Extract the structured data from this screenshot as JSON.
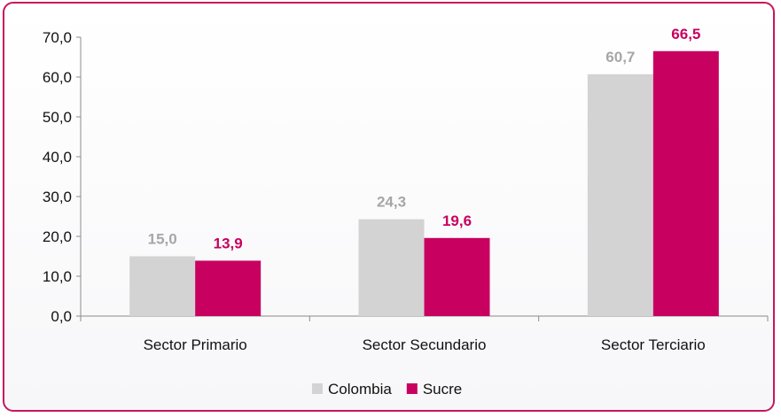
{
  "chart_data": {
    "type": "bar",
    "categories": [
      "Sector Primario",
      "Sector Secundario",
      "Sector Terciario"
    ],
    "series": [
      {
        "name": "Colombia",
        "values": [
          15.0,
          24.3,
          60.7
        ],
        "labels": [
          "15,0",
          "24,3",
          "60,7"
        ],
        "color": "#d3d3d3",
        "label_color": "#a6a6a6"
      },
      {
        "name": "Sucre",
        "values": [
          13.9,
          19.6,
          66.5
        ],
        "labels": [
          "13,9",
          "19,6",
          "66,5"
        ],
        "color": "#c8005f",
        "label_color": "#c8005f"
      }
    ],
    "ylim": [
      0,
      70
    ],
    "yticks": [
      "0,0",
      "10,0",
      "20,0",
      "30,0",
      "40,0",
      "50,0",
      "60,0",
      "70,0"
    ],
    "grid": false,
    "legend_position": "bottom"
  },
  "colors": {
    "frame": "#c7165f",
    "axis": "#8c8c8c"
  }
}
